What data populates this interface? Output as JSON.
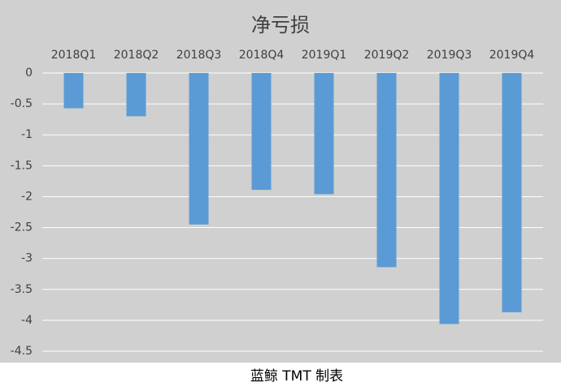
{
  "chart_data": {
    "type": "bar",
    "title": "净亏损",
    "categories": [
      "2018Q1",
      "2018Q2",
      "2018Q3",
      "2018Q4",
      "2019Q1",
      "2019Q2",
      "2019Q3",
      "2019Q4"
    ],
    "values": [
      -0.57,
      -0.7,
      -2.45,
      -1.89,
      -1.96,
      -3.14,
      -4.06,
      -3.87
    ],
    "color": "#5b9bd5",
    "ylim": [
      -4.5,
      0
    ],
    "yticks": [
      0,
      -0.5,
      -1,
      -1.5,
      -2,
      -2.5,
      -3,
      -3.5,
      -4,
      -4.5
    ],
    "grid": true,
    "caption": "蓝鲸 TMT 制表"
  }
}
